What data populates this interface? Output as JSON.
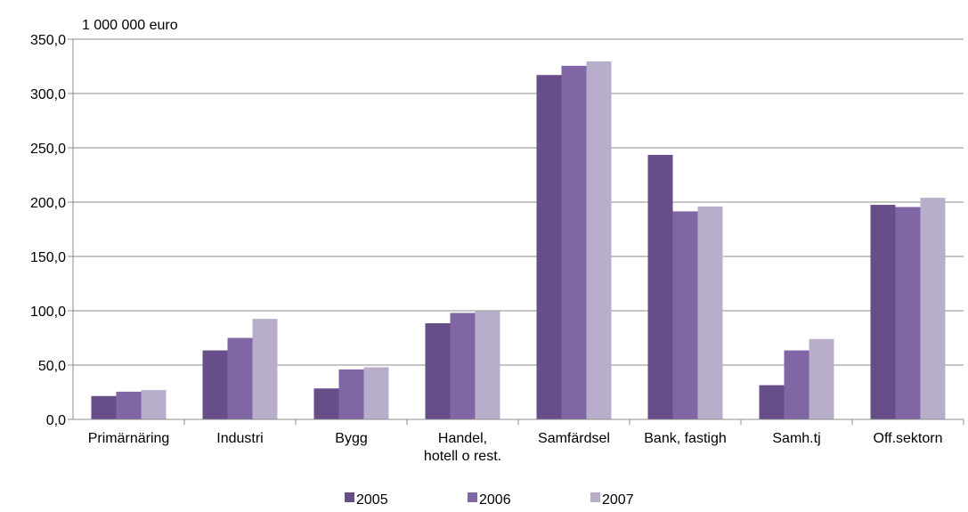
{
  "chart_data": {
    "type": "bar",
    "ylabel": "1 000 000 euro",
    "categories": [
      [
        "Primärnäring"
      ],
      [
        "Industri"
      ],
      [
        "Bygg"
      ],
      [
        "Handel,",
        "hotell o rest."
      ],
      [
        "Samfärdsel"
      ],
      [
        "Bank, fastigh"
      ],
      [
        "Samh.tj"
      ],
      [
        "Off.sektorn"
      ]
    ],
    "series": [
      {
        "name": "2005",
        "color": "#684e88",
        "values": [
          21.5,
          63.5,
          28.5,
          88.5,
          317.0,
          243.5,
          31.5,
          197.5
        ]
      },
      {
        "name": "2006",
        "color": "#8066a4",
        "values": [
          25.5,
          75.0,
          46.0,
          98.0,
          325.5,
          191.5,
          63.5,
          195.5
        ]
      },
      {
        "name": "2007",
        "color": "#b8aecb",
        "values": [
          27.0,
          92.5,
          48.0,
          99.5,
          329.5,
          196.0,
          74.0,
          204.0
        ]
      }
    ],
    "ylim": [
      0,
      350
    ],
    "yticks": [
      "0,0",
      "50,0",
      "100,0",
      "150,0",
      "200,0",
      "250,0",
      "300,0",
      "350,0"
    ],
    "grid": true,
    "legend_position": "bottom"
  }
}
